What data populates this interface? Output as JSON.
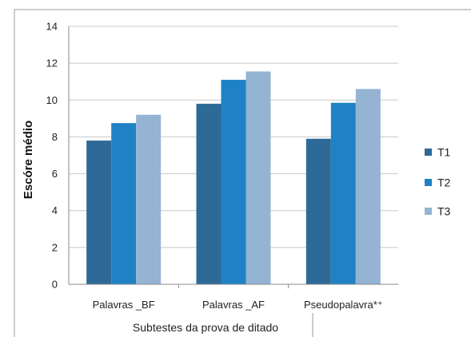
{
  "chart_data": {
    "type": "bar",
    "ylabel": "Escóre médio",
    "xlabel": "Subtestes da prova de ditado",
    "categories": [
      "Palavras _BF",
      "Palavras _AF",
      "Pseudopalavra*⁺"
    ],
    "ylim": [
      0,
      14
    ],
    "yticks": [
      0,
      2,
      4,
      6,
      8,
      10,
      12,
      14
    ],
    "grid": true,
    "legend_position": "right",
    "series": [
      {
        "name": "T1",
        "values": [
          7.8,
          9.8,
          7.9
        ],
        "color": "#2e6a98"
      },
      {
        "name": "T2",
        "values": [
          8.75,
          11.1,
          9.85
        ],
        "color": "#1f82c4"
      },
      {
        "name": "T3",
        "values": [
          9.2,
          11.55,
          10.6
        ],
        "color": "#95b3d3"
      }
    ]
  }
}
